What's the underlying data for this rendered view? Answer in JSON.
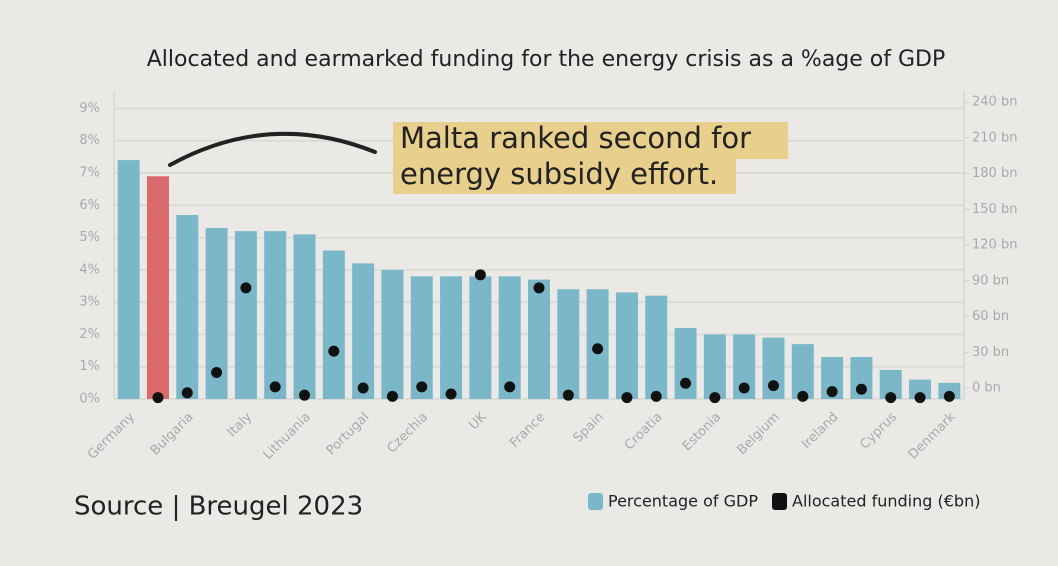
{
  "chart_data": {
    "type": "bar-dot",
    "title": "Allocated and earmarked funding for the energy crisis as a %age of GDP",
    "annotation": [
      "Malta ranked second for",
      "energy subsidy effort."
    ],
    "source": "Source | Breugel 2023",
    "categories": [
      "Germany",
      null,
      "Bulgaria",
      null,
      "Italy",
      null,
      "Lithuania",
      null,
      "Portugal",
      null,
      "Czechia",
      null,
      "UK",
      null,
      "France",
      null,
      "Spain",
      null,
      "Croatia",
      null,
      "Estonia",
      null,
      "Belgium",
      null,
      "Ireland",
      null,
      "Cyprus",
      null,
      "Denmark"
    ],
    "series": [
      {
        "name": "Percentage of GDP",
        "color": "#7ab8c9",
        "axis": "y",
        "colors": [
          "#7ab8c9",
          "#d9696a",
          "#7ab8c9",
          "#7ab8c9",
          "#7ab8c9",
          "#7ab8c9",
          "#7ab8c9",
          "#7ab8c9",
          "#7ab8c9",
          "#7ab8c9",
          "#7ab8c9",
          "#7ab8c9",
          "#7ab8c9",
          "#7ab8c9",
          "#7ab8c9",
          "#7ab8c9",
          "#7ab8c9",
          "#7ab8c9",
          "#7ab8c9",
          "#7ab8c9",
          "#7ab8c9",
          "#7ab8c9",
          "#7ab8c9",
          "#7ab8c9",
          "#7ab8c9",
          "#7ab8c9",
          "#7ab8c9",
          "#7ab8c9",
          "#7ab8c9"
        ],
        "values": [
          7.4,
          6.9,
          5.7,
          5.3,
          5.2,
          5.2,
          5.1,
          4.6,
          4.2,
          4.0,
          3.8,
          3.8,
          3.8,
          3.8,
          3.7,
          3.4,
          3.4,
          3.3,
          3.2,
          2.2,
          2.0,
          2.0,
          1.9,
          1.7,
          1.3,
          1.3,
          0.9,
          0.6,
          0.5
        ]
      },
      {
        "name": "Allocated funding (€bn)",
        "color": "#111111",
        "axis": "y2",
        "values": [
          null,
          -8,
          -4,
          13,
          84,
          1,
          -6,
          31,
          0,
          -7,
          1,
          -5,
          95,
          1,
          84,
          -6,
          33,
          -8,
          -7,
          4,
          -8,
          0,
          2,
          -7,
          -3,
          -1,
          -8,
          -8,
          -7
        ]
      }
    ],
    "ylim": [
      0,
      9.2
    ],
    "yticks": [
      {
        "value": 0,
        "label": "0%"
      },
      {
        "value": 1,
        "label": "1%"
      },
      {
        "value": 2,
        "label": "2%"
      },
      {
        "value": 3,
        "label": "3%"
      },
      {
        "value": 4,
        "label": "4%"
      },
      {
        "value": 5,
        "label": "5%"
      },
      {
        "value": 6,
        "label": "6%"
      },
      {
        "value": 7,
        "label": "7%"
      },
      {
        "value": 8,
        "label": "8%"
      },
      {
        "value": 9,
        "label": "9%"
      }
    ],
    "y2lim": [
      -9.2,
      240
    ],
    "y2ticks": [
      {
        "value": 0,
        "label": "0 bn"
      },
      {
        "value": 30,
        "label": "30 bn"
      },
      {
        "value": 60,
        "label": "60 bn"
      },
      {
        "value": 90,
        "label": "90 bn"
      },
      {
        "value": 120,
        "label": "120 bn"
      },
      {
        "value": 150,
        "label": "150 bn"
      },
      {
        "value": 180,
        "label": "180 bn"
      },
      {
        "value": 210,
        "label": "210 bn"
      },
      {
        "value": 240,
        "label": "240 bn"
      }
    ],
    "grid": true
  }
}
